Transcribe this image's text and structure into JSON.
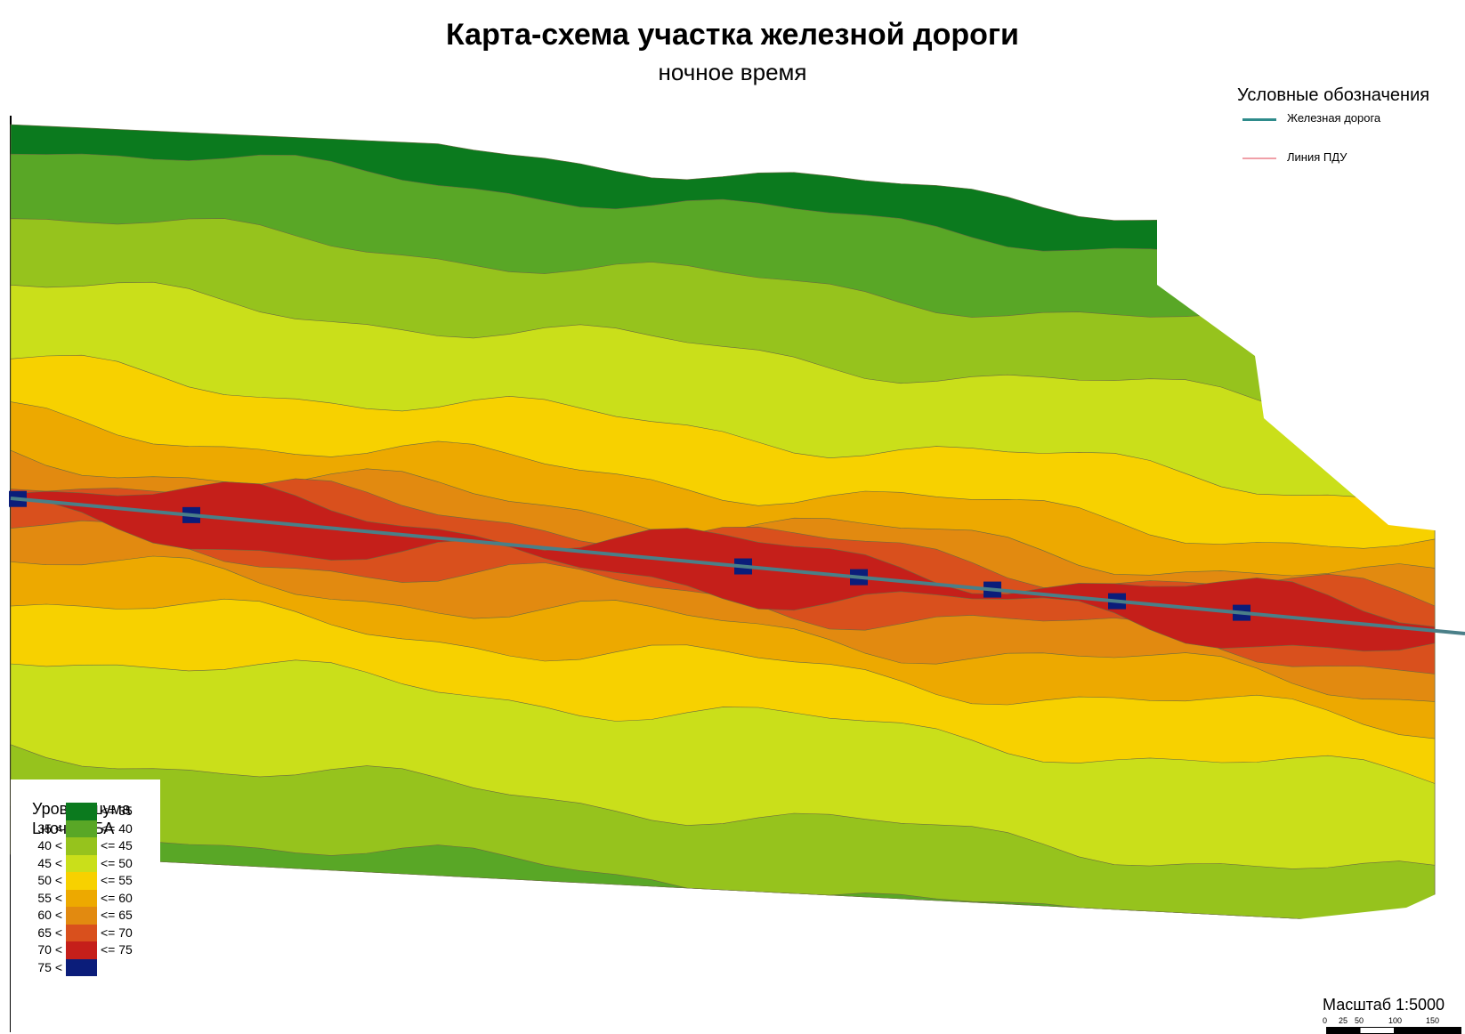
{
  "title": "Карта-схема участка железной дороги",
  "subtitle": "ночное время",
  "legend": {
    "heading": "Условные обозначения",
    "items": [
      {
        "label": "Железная дорога",
        "color": "#2e8b8b"
      },
      {
        "label": "Линия ПДУ",
        "color": "#f0a0a8"
      }
    ]
  },
  "noise_legend": {
    "title_line1": "Уровни шума",
    "title_line2": "Lночь, дБА",
    "classes": [
      {
        "lo": "",
        "hi": "<= 35",
        "color": "#0b7a1e"
      },
      {
        "lo": "35 <",
        "hi": "<= 40",
        "color": "#59a726"
      },
      {
        "lo": "40 <",
        "hi": "<= 45",
        "color": "#96c31d"
      },
      {
        "lo": "45 <",
        "hi": "<= 50",
        "color": "#cadf1a"
      },
      {
        "lo": "50 <",
        "hi": "<= 55",
        "color": "#f7d100"
      },
      {
        "lo": "55 <",
        "hi": "<= 60",
        "color": "#eda900"
      },
      {
        "lo": "60 <",
        "hi": "<= 65",
        "color": "#e28a10"
      },
      {
        "lo": "65 <",
        "hi": "<= 70",
        "color": "#d9501d"
      },
      {
        "lo": "70 <",
        "hi": "<= 75",
        "color": "#c51f1a"
      },
      {
        "lo": "75 <",
        "hi": "",
        "color": "#0b1d7a"
      }
    ]
  },
  "scale": {
    "label": "Масштаб 1:5000",
    "ticks": [
      "0",
      "25",
      "50",
      "100",
      "150"
    ]
  }
}
